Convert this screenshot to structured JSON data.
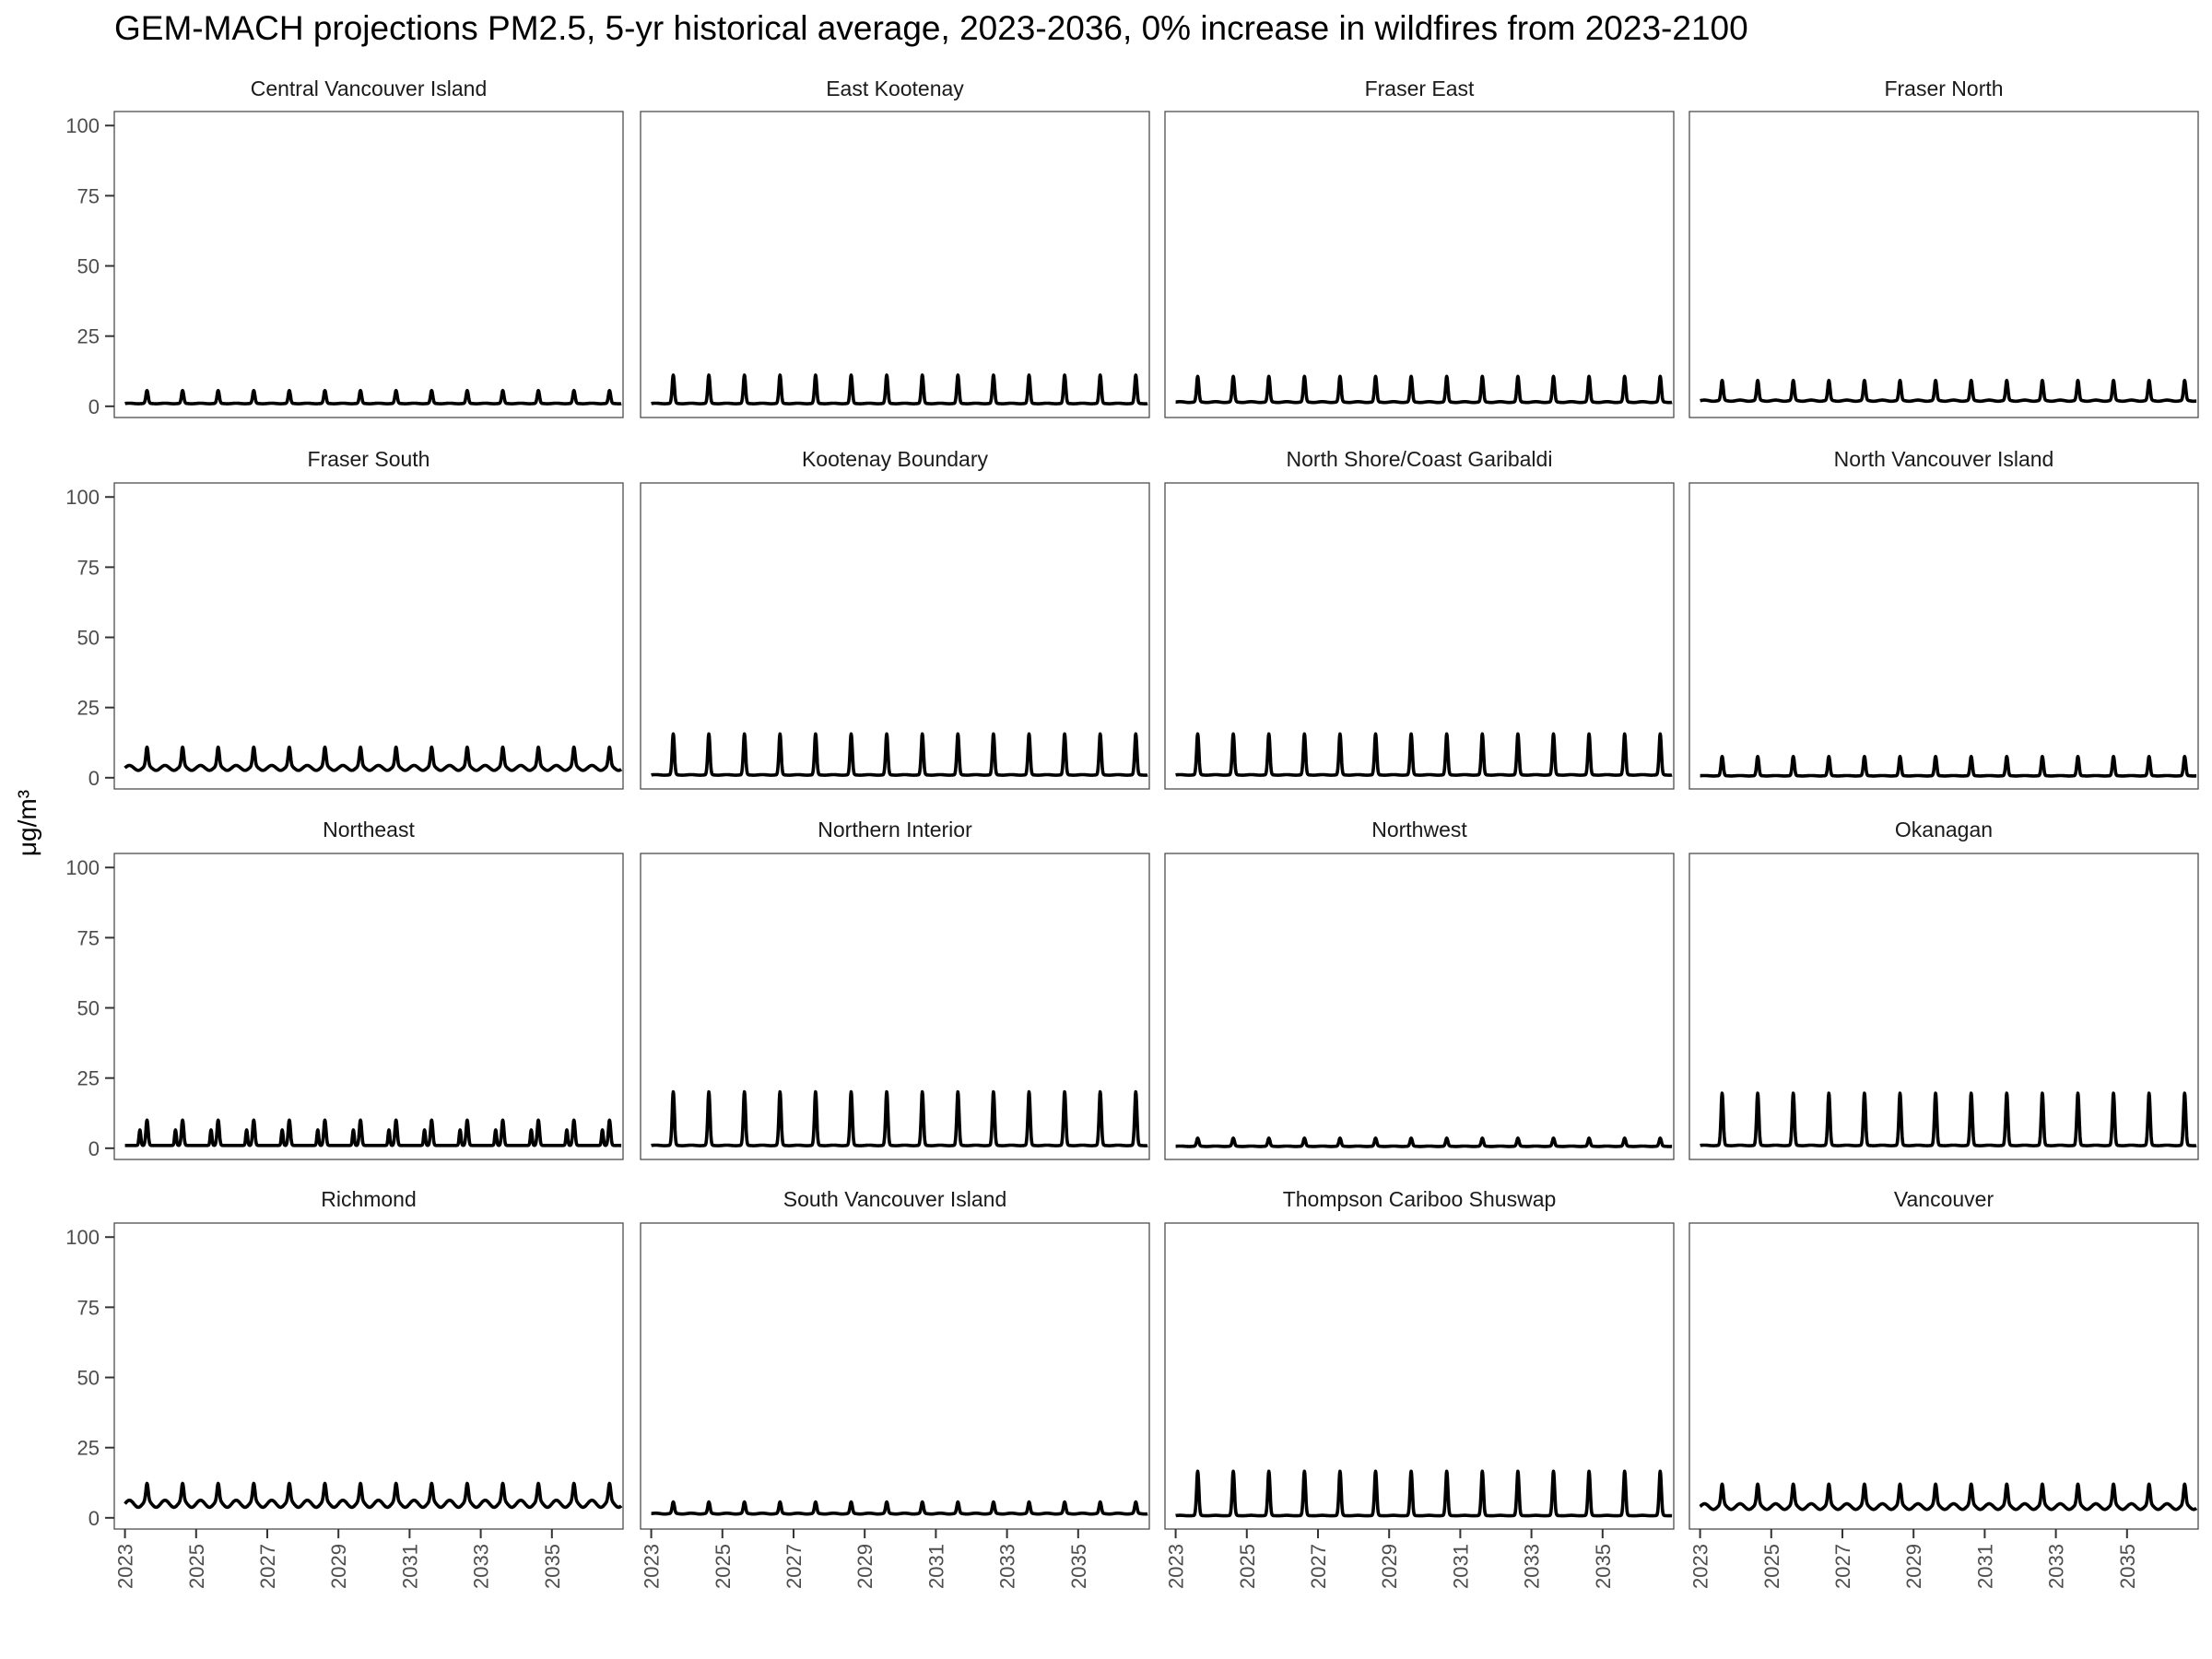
{
  "title": "GEM-MACH projections PM2.5, 5-yr historical average, 2023-2036, 0% increase in wildfires from 2023-2100",
  "ylabel": "μg/m³",
  "chart_data": {
    "type": "line",
    "title": "GEM-MACH projections PM2.5, 5-yr historical average, 2023-2036, 0% increase in wildfires from 2023-2100",
    "xlabel": "",
    "ylabel": "μg/m³",
    "xlim": [
      2022.7,
      2037.0
    ],
    "ylim": [
      -4,
      105
    ],
    "x_ticks": [
      2023,
      2025,
      2027,
      2029,
      2031,
      2033,
      2035
    ],
    "y_ticks": [
      0,
      25,
      50,
      75,
      100
    ],
    "x_start": "2023",
    "x_end": "2036",
    "layout": {
      "rows": 4,
      "cols": 4
    },
    "line_color": "#000000",
    "grid": false,
    "series": [
      {
        "name": "Central Vancouver Island",
        "pattern": "peak",
        "base": 1.0,
        "peak": 5.5
      },
      {
        "name": "East Kootenay",
        "pattern": "peak",
        "base": 1.0,
        "peak": 11
      },
      {
        "name": "Fraser East",
        "pattern": "peak",
        "base": 1.5,
        "peak": 10.5
      },
      {
        "name": "Fraser North",
        "pattern": "peak",
        "base": 2.0,
        "peak": 9
      },
      {
        "name": "Fraser South",
        "pattern": "peak",
        "base": 3.5,
        "peak": 10
      },
      {
        "name": "Kootenay Boundary",
        "pattern": "peak",
        "base": 1.0,
        "peak": 15.5
      },
      {
        "name": "North Shore/Coast Garibaldi",
        "pattern": "peak",
        "base": 1.0,
        "peak": 15.5
      },
      {
        "name": "North Vancouver Island",
        "pattern": "peak",
        "base": 0.7,
        "peak": 7.5
      },
      {
        "name": "Northeast",
        "pattern": "double",
        "base": 1.0,
        "peak": 10
      },
      {
        "name": "Northern Interior",
        "pattern": "peak",
        "base": 1.0,
        "peak": 20
      },
      {
        "name": "Northwest",
        "pattern": "peak",
        "base": 0.7,
        "peak": 3.5
      },
      {
        "name": "Okanagan",
        "pattern": "peak",
        "base": 1.0,
        "peak": 19.5
      },
      {
        "name": "Richmond",
        "pattern": "peak",
        "base": 5.0,
        "peak": 11
      },
      {
        "name": "South Vancouver Island",
        "pattern": "peak",
        "base": 1.5,
        "peak": 5.5
      },
      {
        "name": "Thompson Cariboo Shuswap",
        "pattern": "peak",
        "base": 0.8,
        "peak": 16.5
      },
      {
        "name": "Vancouver",
        "pattern": "peak",
        "base": 4.0,
        "peak": 11
      }
    ]
  }
}
